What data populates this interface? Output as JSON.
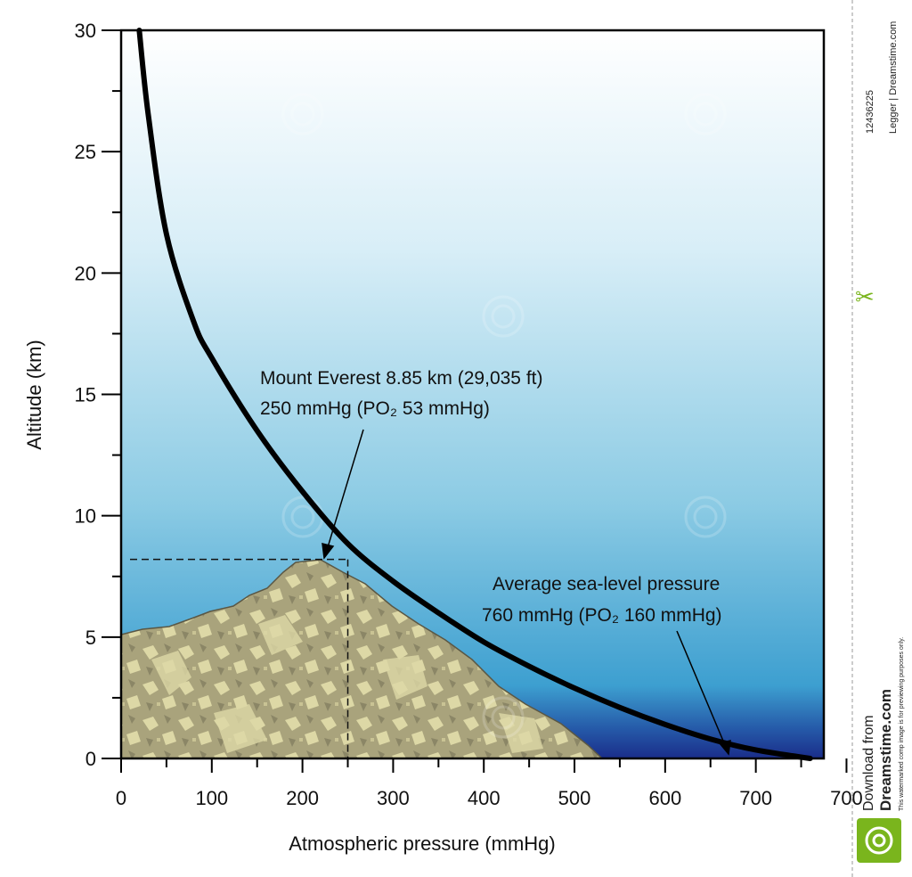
{
  "chart_data": {
    "type": "line",
    "xlabel": "Atmospheric pressure (mmHg)",
    "ylabel": "Altitude (km)",
    "xlim": [
      0,
      775
    ],
    "ylim": [
      0,
      30
    ],
    "x_tick_labels": [
      "0",
      "100",
      "200",
      "300",
      "400",
      "500",
      "600",
      "700",
      "700"
    ],
    "y_ticks": [
      0,
      5,
      10,
      15,
      20,
      25,
      30
    ],
    "series": [
      {
        "x": [
          20,
          30,
          50,
          80,
          100,
          150,
          200,
          250,
          300,
          350,
          400,
          450,
          500,
          550,
          600,
          650,
          700,
          760
        ],
        "y": [
          30,
          26.5,
          21.6,
          18.0,
          16.5,
          13.5,
          11.0,
          8.85,
          7.3,
          6.0,
          4.8,
          3.8,
          2.9,
          2.1,
          1.4,
          0.8,
          0.35,
          0
        ]
      }
    ],
    "annotations": [
      {
        "lines": [
          "Mount Everest 8.85 km (29,035 ft)",
          "250 mmHg (PO₂ 53 mmHg)"
        ],
        "point": [
          250,
          8.85
        ]
      },
      {
        "lines": [
          "Average sea-level pressure",
          "760 mmHg (PO₂ 160 mmHg)"
        ],
        "point": [
          760,
          0
        ]
      }
    ],
    "reference_point": {
      "x": 250,
      "y": 8.2
    }
  },
  "colors": {
    "sky_top": "#ffffff",
    "sky_mid": "#a9d8ea",
    "sky_low": "#4aa9d3",
    "sky_bottom": "#1a2d8a",
    "mountain": "#a9a37c",
    "mountain_light": "#ddd8a6",
    "curve": "#000000",
    "sidebar_green": "#7ab51d"
  },
  "watermark": {
    "text": "dreamstime",
    "sidebar_id": "12436225",
    "sidebar_credit": "Legger | Dreamstime.com",
    "download_text": "Download from",
    "brand": "Dreamstime.com",
    "notice": "This watermarked comp image is for previewing purposes only."
  }
}
